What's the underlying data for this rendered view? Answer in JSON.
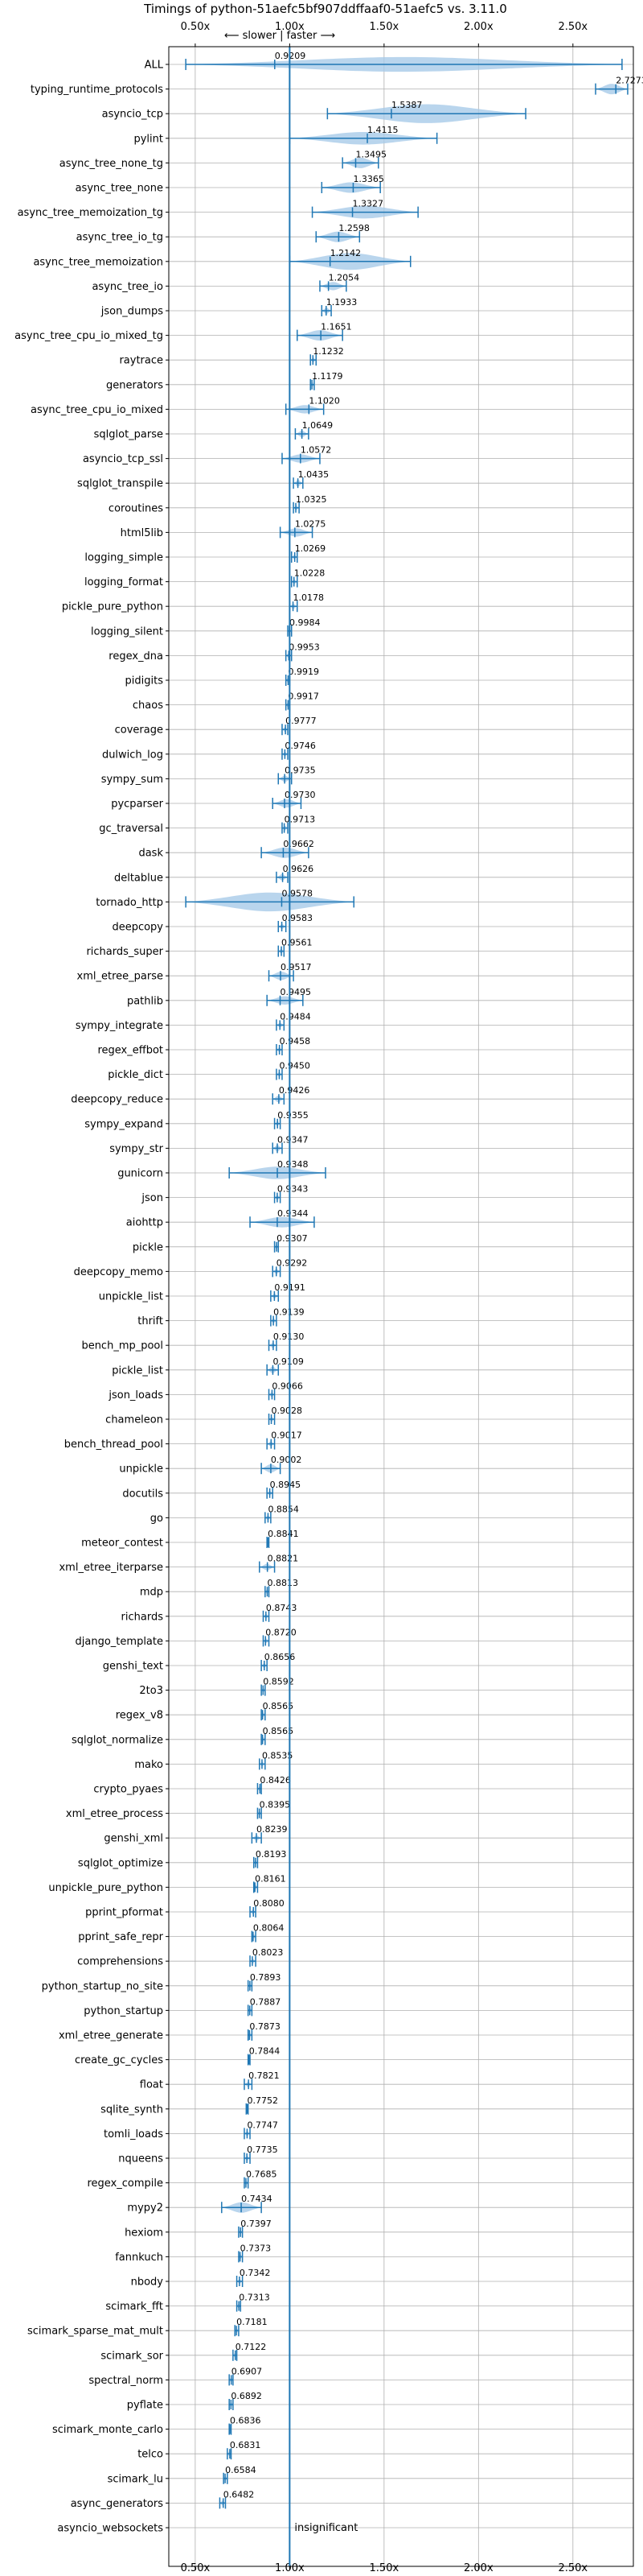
{
  "chart_data": {
    "type": "violin",
    "title": "Timings of python-51aefc5bf907ddffaaf0-51aefc5 vs. 3.11.0",
    "direction_hint": "⟵ slower | faster ⟶",
    "xlim": [
      0.36,
      2.82
    ],
    "x_ticks": [
      0.5,
      1.0,
      1.5,
      2.0,
      2.5
    ],
    "x_tick_labels": [
      "0.50x",
      "1.00x",
      "1.50x",
      "2.00x",
      "2.50x"
    ],
    "reference_line": 1.0,
    "grid": true,
    "benchmarks": [
      {
        "name": "ALL",
        "value": 0.9209,
        "label": "0.9209",
        "low": 0.45,
        "high": 2.76,
        "width": 0.7
      },
      {
        "name": "typing_runtime_protocols",
        "value": 2.7273,
        "label": "2.7273",
        "low": 2.62,
        "high": 2.79,
        "width": 0.5
      },
      {
        "name": "asyncio_tcp",
        "value": 1.5387,
        "label": "1.5387",
        "low": 1.2,
        "high": 2.25,
        "width": 0.9
      },
      {
        "name": "pylint",
        "value": 1.4115,
        "label": "1.4115",
        "low": 1.0,
        "high": 1.78,
        "width": 0.6
      },
      {
        "name": "async_tree_none_tg",
        "value": 1.3495,
        "label": "1.3495",
        "low": 1.28,
        "high": 1.47,
        "width": 0.5
      },
      {
        "name": "async_tree_none",
        "value": 1.3365,
        "label": "1.3365",
        "low": 1.17,
        "high": 1.48,
        "width": 0.5
      },
      {
        "name": "async_tree_memoization_tg",
        "value": 1.3327,
        "label": "1.3327",
        "low": 1.12,
        "high": 1.68,
        "width": 0.6
      },
      {
        "name": "async_tree_io_tg",
        "value": 1.2598,
        "label": "1.2598",
        "low": 1.14,
        "high": 1.37,
        "width": 0.5
      },
      {
        "name": "async_tree_memoization",
        "value": 1.2142,
        "label": "1.2142",
        "low": 1.0,
        "high": 1.64,
        "width": 0.8
      },
      {
        "name": "async_tree_io",
        "value": 1.2054,
        "label": "1.2054",
        "low": 1.16,
        "high": 1.3,
        "width": 0.4
      },
      {
        "name": "json_dumps",
        "value": 1.1933,
        "label": "1.1933",
        "low": 1.17,
        "high": 1.22,
        "width": 0.3
      },
      {
        "name": "async_tree_cpu_io_mixed_tg",
        "value": 1.1651,
        "label": "1.1651",
        "low": 1.04,
        "high": 1.28,
        "width": 0.5
      },
      {
        "name": "raytrace",
        "value": 1.1232,
        "label": "1.1232",
        "low": 1.11,
        "high": 1.14,
        "width": 0.2
      },
      {
        "name": "generators",
        "value": 1.1179,
        "label": "1.1179",
        "low": 1.11,
        "high": 1.13,
        "width": 0.2
      },
      {
        "name": "async_tree_cpu_io_mixed",
        "value": 1.102,
        "label": "1.1020",
        "low": 0.98,
        "high": 1.18,
        "width": 0.4
      },
      {
        "name": "sqlglot_parse",
        "value": 1.0649,
        "label": "1.0649",
        "low": 1.03,
        "high": 1.1,
        "width": 0.3
      },
      {
        "name": "asyncio_tcp_ssl",
        "value": 1.0572,
        "label": "1.0572",
        "low": 0.96,
        "high": 1.16,
        "width": 0.4
      },
      {
        "name": "sqlglot_transpile",
        "value": 1.0435,
        "label": "1.0435",
        "low": 1.02,
        "high": 1.07,
        "width": 0.3
      },
      {
        "name": "coroutines",
        "value": 1.0325,
        "label": "1.0325",
        "low": 1.02,
        "high": 1.05,
        "width": 0.2
      },
      {
        "name": "html5lib",
        "value": 1.0275,
        "label": "1.0275",
        "low": 0.95,
        "high": 1.12,
        "width": 0.4
      },
      {
        "name": "logging_simple",
        "value": 1.0269,
        "label": "1.0269",
        "low": 1.01,
        "high": 1.04,
        "width": 0.2
      },
      {
        "name": "logging_format",
        "value": 1.0228,
        "label": "1.0228",
        "low": 1.01,
        "high": 1.04,
        "width": 0.2
      },
      {
        "name": "pickle_pure_python",
        "value": 1.0178,
        "label": "1.0178",
        "low": 1.0,
        "high": 1.04,
        "width": 0.2
      },
      {
        "name": "logging_silent",
        "value": 0.9984,
        "label": "0.9984",
        "low": 0.99,
        "high": 1.01,
        "width": 0.15
      },
      {
        "name": "regex_dna",
        "value": 0.9953,
        "label": "0.9953",
        "low": 0.98,
        "high": 1.01,
        "width": 0.2
      },
      {
        "name": "pidigits",
        "value": 0.9919,
        "label": "0.9919",
        "low": 0.98,
        "high": 1.0,
        "width": 0.15
      },
      {
        "name": "chaos",
        "value": 0.9917,
        "label": "0.9917",
        "low": 0.98,
        "high": 1.0,
        "width": 0.15
      },
      {
        "name": "coverage",
        "value": 0.9777,
        "label": "0.9777",
        "low": 0.96,
        "high": 0.99,
        "width": 0.2
      },
      {
        "name": "dulwich_log",
        "value": 0.9746,
        "label": "0.9746",
        "low": 0.96,
        "high": 0.99,
        "width": 0.2
      },
      {
        "name": "sympy_sum",
        "value": 0.9735,
        "label": "0.9735",
        "low": 0.94,
        "high": 1.01,
        "width": 0.3
      },
      {
        "name": "pycparser",
        "value": 0.973,
        "label": "0.9730",
        "low": 0.91,
        "high": 1.06,
        "width": 0.4
      },
      {
        "name": "gc_traversal",
        "value": 0.9713,
        "label": "0.9713",
        "low": 0.96,
        "high": 0.99,
        "width": 0.2
      },
      {
        "name": "dask",
        "value": 0.9662,
        "label": "0.9662",
        "low": 0.85,
        "high": 1.1,
        "width": 0.5
      },
      {
        "name": "deltablue",
        "value": 0.9626,
        "label": "0.9626",
        "low": 0.93,
        "high": 0.99,
        "width": 0.3
      },
      {
        "name": "tornado_http",
        "value": 0.9578,
        "label": "0.9578",
        "low": 0.45,
        "high": 1.34,
        "width": 0.9
      },
      {
        "name": "deepcopy",
        "value": 0.9583,
        "label": "0.9583",
        "low": 0.94,
        "high": 0.98,
        "width": 0.2
      },
      {
        "name": "richards_super",
        "value": 0.9561,
        "label": "0.9561",
        "low": 0.94,
        "high": 0.97,
        "width": 0.2
      },
      {
        "name": "xml_etree_parse",
        "value": 0.9517,
        "label": "0.9517",
        "low": 0.89,
        "high": 1.02,
        "width": 0.4
      },
      {
        "name": "pathlib",
        "value": 0.9495,
        "label": "0.9495",
        "low": 0.88,
        "high": 1.07,
        "width": 0.4
      },
      {
        "name": "sympy_integrate",
        "value": 0.9484,
        "label": "0.9484",
        "low": 0.93,
        "high": 0.97,
        "width": 0.2
      },
      {
        "name": "regex_effbot",
        "value": 0.9458,
        "label": "0.9458",
        "low": 0.93,
        "high": 0.96,
        "width": 0.2
      },
      {
        "name": "pickle_dict",
        "value": 0.945,
        "label": "0.9450",
        "low": 0.93,
        "high": 0.96,
        "width": 0.2
      },
      {
        "name": "deepcopy_reduce",
        "value": 0.9426,
        "label": "0.9426",
        "low": 0.91,
        "high": 0.97,
        "width": 0.3
      },
      {
        "name": "sympy_expand",
        "value": 0.9355,
        "label": "0.9355",
        "low": 0.92,
        "high": 0.95,
        "width": 0.2
      },
      {
        "name": "sympy_str",
        "value": 0.9347,
        "label": "0.9347",
        "low": 0.91,
        "high": 0.96,
        "width": 0.3
      },
      {
        "name": "gunicorn",
        "value": 0.9348,
        "label": "0.9348",
        "low": 0.68,
        "high": 1.19,
        "width": 0.6
      },
      {
        "name": "json",
        "value": 0.9343,
        "label": "0.9343",
        "low": 0.92,
        "high": 0.95,
        "width": 0.2
      },
      {
        "name": "aiohttp",
        "value": 0.9344,
        "label": "0.9344",
        "low": 0.79,
        "high": 1.13,
        "width": 0.5
      },
      {
        "name": "pickle",
        "value": 0.9307,
        "label": "0.9307",
        "low": 0.92,
        "high": 0.94,
        "width": 0.2
      },
      {
        "name": "deepcopy_memo",
        "value": 0.9292,
        "label": "0.9292",
        "low": 0.91,
        "high": 0.95,
        "width": 0.2
      },
      {
        "name": "unpickle_list",
        "value": 0.9191,
        "label": "0.9191",
        "low": 0.9,
        "high": 0.94,
        "width": 0.2
      },
      {
        "name": "thrift",
        "value": 0.9139,
        "label": "0.9139",
        "low": 0.9,
        "high": 0.93,
        "width": 0.2
      },
      {
        "name": "bench_mp_pool",
        "value": 0.913,
        "label": "0.9130",
        "low": 0.89,
        "high": 0.93,
        "width": 0.2
      },
      {
        "name": "pickle_list",
        "value": 0.9109,
        "label": "0.9109",
        "low": 0.88,
        "high": 0.94,
        "width": 0.3
      },
      {
        "name": "json_loads",
        "value": 0.9066,
        "label": "0.9066",
        "low": 0.89,
        "high": 0.92,
        "width": 0.2
      },
      {
        "name": "chameleon",
        "value": 0.9028,
        "label": "0.9028",
        "low": 0.89,
        "high": 0.92,
        "width": 0.2
      },
      {
        "name": "bench_thread_pool",
        "value": 0.9017,
        "label": "0.9017",
        "low": 0.88,
        "high": 0.92,
        "width": 0.2
      },
      {
        "name": "unpickle",
        "value": 0.9002,
        "label": "0.9002",
        "low": 0.85,
        "high": 0.95,
        "width": 0.4
      },
      {
        "name": "docutils",
        "value": 0.8945,
        "label": "0.8945",
        "low": 0.88,
        "high": 0.91,
        "width": 0.2
      },
      {
        "name": "go",
        "value": 0.8854,
        "label": "0.8854",
        "low": 0.87,
        "high": 0.9,
        "width": 0.2
      },
      {
        "name": "meteor_contest",
        "value": 0.8841,
        "label": "0.8841",
        "low": 0.88,
        "high": 0.89,
        "width": 0.12
      },
      {
        "name": "xml_etree_iterparse",
        "value": 0.8821,
        "label": "0.8821",
        "low": 0.84,
        "high": 0.92,
        "width": 0.3
      },
      {
        "name": "mdp",
        "value": 0.8813,
        "label": "0.8813",
        "low": 0.87,
        "high": 0.89,
        "width": 0.15
      },
      {
        "name": "richards",
        "value": 0.8743,
        "label": "0.8743",
        "low": 0.86,
        "high": 0.89,
        "width": 0.2
      },
      {
        "name": "django_template",
        "value": 0.872,
        "label": "0.8720",
        "low": 0.86,
        "high": 0.89,
        "width": 0.2
      },
      {
        "name": "genshi_text",
        "value": 0.8656,
        "label": "0.8656",
        "low": 0.85,
        "high": 0.88,
        "width": 0.2
      },
      {
        "name": "2to3",
        "value": 0.8592,
        "label": "0.8592",
        "low": 0.85,
        "high": 0.87,
        "width": 0.15
      },
      {
        "name": "regex_v8",
        "value": 0.8565,
        "label": "0.8565",
        "low": 0.85,
        "high": 0.87,
        "width": 0.15
      },
      {
        "name": "sqlglot_normalize",
        "value": 0.8565,
        "label": "0.8565",
        "low": 0.85,
        "high": 0.87,
        "width": 0.15
      },
      {
        "name": "mako",
        "value": 0.8535,
        "label": "0.8535",
        "low": 0.84,
        "high": 0.87,
        "width": 0.2
      },
      {
        "name": "crypto_pyaes",
        "value": 0.8426,
        "label": "0.8426",
        "low": 0.83,
        "high": 0.85,
        "width": 0.15
      },
      {
        "name": "xml_etree_process",
        "value": 0.8395,
        "label": "0.8395",
        "low": 0.83,
        "high": 0.85,
        "width": 0.15
      },
      {
        "name": "genshi_xml",
        "value": 0.8239,
        "label": "0.8239",
        "low": 0.8,
        "high": 0.85,
        "width": 0.25
      },
      {
        "name": "sqlglot_optimize",
        "value": 0.8193,
        "label": "0.8193",
        "low": 0.81,
        "high": 0.83,
        "width": 0.15
      },
      {
        "name": "unpickle_pure_python",
        "value": 0.8161,
        "label": "0.8161",
        "low": 0.81,
        "high": 0.83,
        "width": 0.15
      },
      {
        "name": "pprint_pformat",
        "value": 0.808,
        "label": "0.8080",
        "low": 0.79,
        "high": 0.82,
        "width": 0.2
      },
      {
        "name": "pprint_safe_repr",
        "value": 0.8064,
        "label": "0.8064",
        "low": 0.8,
        "high": 0.82,
        "width": 0.15
      },
      {
        "name": "comprehensions",
        "value": 0.8023,
        "label": "0.8023",
        "low": 0.79,
        "high": 0.82,
        "width": 0.2
      },
      {
        "name": "python_startup_no_site",
        "value": 0.7893,
        "label": "0.7893",
        "low": 0.78,
        "high": 0.8,
        "width": 0.15
      },
      {
        "name": "python_startup",
        "value": 0.7887,
        "label": "0.7887",
        "low": 0.78,
        "high": 0.8,
        "width": 0.15
      },
      {
        "name": "xml_etree_generate",
        "value": 0.7873,
        "label": "0.7873",
        "low": 0.78,
        "high": 0.8,
        "width": 0.15
      },
      {
        "name": "create_gc_cycles",
        "value": 0.7844,
        "label": "0.7844",
        "low": 0.78,
        "high": 0.79,
        "width": 0.12
      },
      {
        "name": "float",
        "value": 0.7821,
        "label": "0.7821",
        "low": 0.76,
        "high": 0.8,
        "width": 0.25
      },
      {
        "name": "sqlite_synth",
        "value": 0.7752,
        "label": "0.7752",
        "low": 0.77,
        "high": 0.78,
        "width": 0.12
      },
      {
        "name": "tomli_loads",
        "value": 0.7747,
        "label": "0.7747",
        "low": 0.76,
        "high": 0.79,
        "width": 0.2
      },
      {
        "name": "nqueens",
        "value": 0.7735,
        "label": "0.7735",
        "low": 0.76,
        "high": 0.79,
        "width": 0.2
      },
      {
        "name": "regex_compile",
        "value": 0.7685,
        "label": "0.7685",
        "low": 0.76,
        "high": 0.78,
        "width": 0.15
      },
      {
        "name": "mypy2",
        "value": 0.7434,
        "label": "0.7434",
        "low": 0.64,
        "high": 0.85,
        "width": 0.5
      },
      {
        "name": "hexiom",
        "value": 0.7397,
        "label": "0.7397",
        "low": 0.73,
        "high": 0.75,
        "width": 0.12
      },
      {
        "name": "fannkuch",
        "value": 0.7373,
        "label": "0.7373",
        "low": 0.73,
        "high": 0.75,
        "width": 0.12
      },
      {
        "name": "nbody",
        "value": 0.7342,
        "label": "0.7342",
        "low": 0.72,
        "high": 0.75,
        "width": 0.2
      },
      {
        "name": "scimark_fft",
        "value": 0.7313,
        "label": "0.7313",
        "low": 0.72,
        "high": 0.74,
        "width": 0.15
      },
      {
        "name": "scimark_sparse_mat_mult",
        "value": 0.7181,
        "label": "0.7181",
        "low": 0.71,
        "high": 0.73,
        "width": 0.12
      },
      {
        "name": "scimark_sor",
        "value": 0.7122,
        "label": "0.7122",
        "low": 0.7,
        "high": 0.72,
        "width": 0.15
      },
      {
        "name": "spectral_norm",
        "value": 0.6907,
        "label": "0.6907",
        "low": 0.68,
        "high": 0.7,
        "width": 0.12
      },
      {
        "name": "pyflate",
        "value": 0.6892,
        "label": "0.6892",
        "low": 0.68,
        "high": 0.7,
        "width": 0.12
      },
      {
        "name": "scimark_monte_carlo",
        "value": 0.6836,
        "label": "0.6836",
        "low": 0.68,
        "high": 0.69,
        "width": 0.12
      },
      {
        "name": "telco",
        "value": 0.6831,
        "label": "0.6831",
        "low": 0.67,
        "high": 0.69,
        "width": 0.15
      },
      {
        "name": "scimark_lu",
        "value": 0.6584,
        "label": "0.6584",
        "low": 0.65,
        "high": 0.67,
        "width": 0.15
      },
      {
        "name": "async_generators",
        "value": 0.6482,
        "label": "0.6482",
        "low": 0.63,
        "high": 0.66,
        "width": 0.2
      },
      {
        "name": "asyncio_websockets",
        "value": null,
        "label": "insignificant",
        "low": null,
        "high": null,
        "width": 0
      }
    ]
  },
  "colors": {
    "violin_fill": "#a8cbe8",
    "violin_edge": "#1f77b4",
    "reference_line": "#1f77b4",
    "grid": "#b0b0b0",
    "text": "#000000"
  }
}
